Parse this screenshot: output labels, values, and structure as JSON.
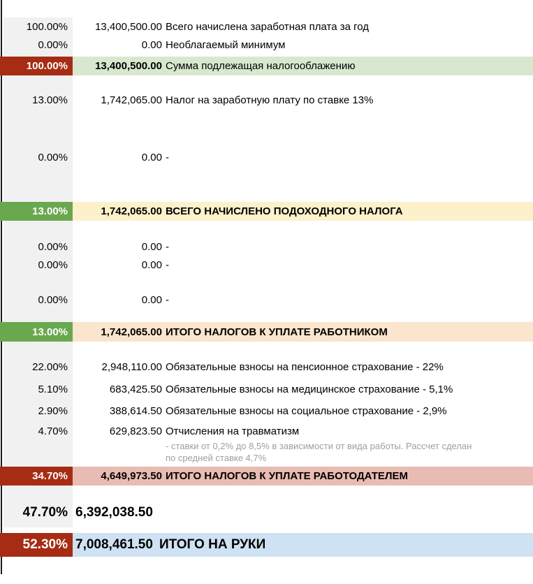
{
  "sheet": {
    "columns": {
      "percent_header": "",
      "amount_header": "",
      "label_header": ""
    },
    "rows": [
      {
        "percent": "100.00%",
        "amount": "13,400,500.00",
        "label": "Всего начислена заработная плата за год"
      },
      {
        "percent": "0.00%",
        "amount": "0.00",
        "label": "Необлагаемый минимум"
      },
      {
        "percent": "100.00%",
        "amount": "13,400,500.00",
        "label": "Сумма подлежащая налогооблажению"
      },
      {
        "percent": "13.00%",
        "amount": "1,742,065.00",
        "label": "Налог на заработную плату по ставке 13%"
      },
      {
        "percent": "0.00%",
        "amount": "0.00",
        "label": "-"
      },
      {
        "percent": "13.00%",
        "amount": "1,742,065.00",
        "label": "ВСЕГО НАЧИСЛЕНО ПОДОХОДНОГО НАЛОГА"
      },
      {
        "percent": "0.00%",
        "amount": "0.00",
        "label": "-"
      },
      {
        "percent": "0.00%",
        "amount": "0.00",
        "label": "-"
      },
      {
        "percent": "0.00%",
        "amount": "0.00",
        "label": "-"
      },
      {
        "percent": "13.00%",
        "amount": "1,742,065.00",
        "label": "ИТОГО НАЛОГОВ К УПЛАТЕ РАБОТНИКОМ"
      },
      {
        "percent": "22.00%",
        "amount": "2,948,110.00",
        "label": "Обязательные взносы на пенсионное страхование - 22%"
      },
      {
        "percent": "5.10%",
        "amount": "683,425.50",
        "label": "Обязательные взносы на медицинское страхование - 5,1%"
      },
      {
        "percent": "2.90%",
        "amount": "388,614.50",
        "label": "Обязательные взносы на социальное страхование - 2,9%"
      },
      {
        "percent": "4.70%",
        "amount": "629,823.50",
        "label": "Отчисления на травматизм"
      },
      {
        "percent": "34.70%",
        "amount": "4,649,973.50",
        "label": "ИТОГО НАЛОГОВ К УПЛАТЕ РАБОТОДАТЕЛЕМ"
      },
      {
        "percent": "47.70%",
        "amount": "6,392,038.50",
        "label": ""
      },
      {
        "percent": "52.30%",
        "amount": "7,008,461.50",
        "label": "ИТОГО НА РУКИ"
      }
    ],
    "note": {
      "line1": "- ставки от 0,2% до 8,5% в зависимости от вида работы. Рассчет сделан",
      "line2": "по средней ставке 4,7%"
    },
    "colors": {
      "highlight_dark_red": "#A62C14",
      "highlight_green": "#6AA84F",
      "row_bg_green": "#D8E8CE",
      "row_bg_yellow": "#FCF1CB",
      "row_bg_peach": "#FCE5CD",
      "row_bg_salmon": "#E8BCB2",
      "row_bg_blue": "#CFE2F3",
      "percent_column_bg": "#F1F1F1",
      "note_text": "#9E9E9E"
    }
  }
}
